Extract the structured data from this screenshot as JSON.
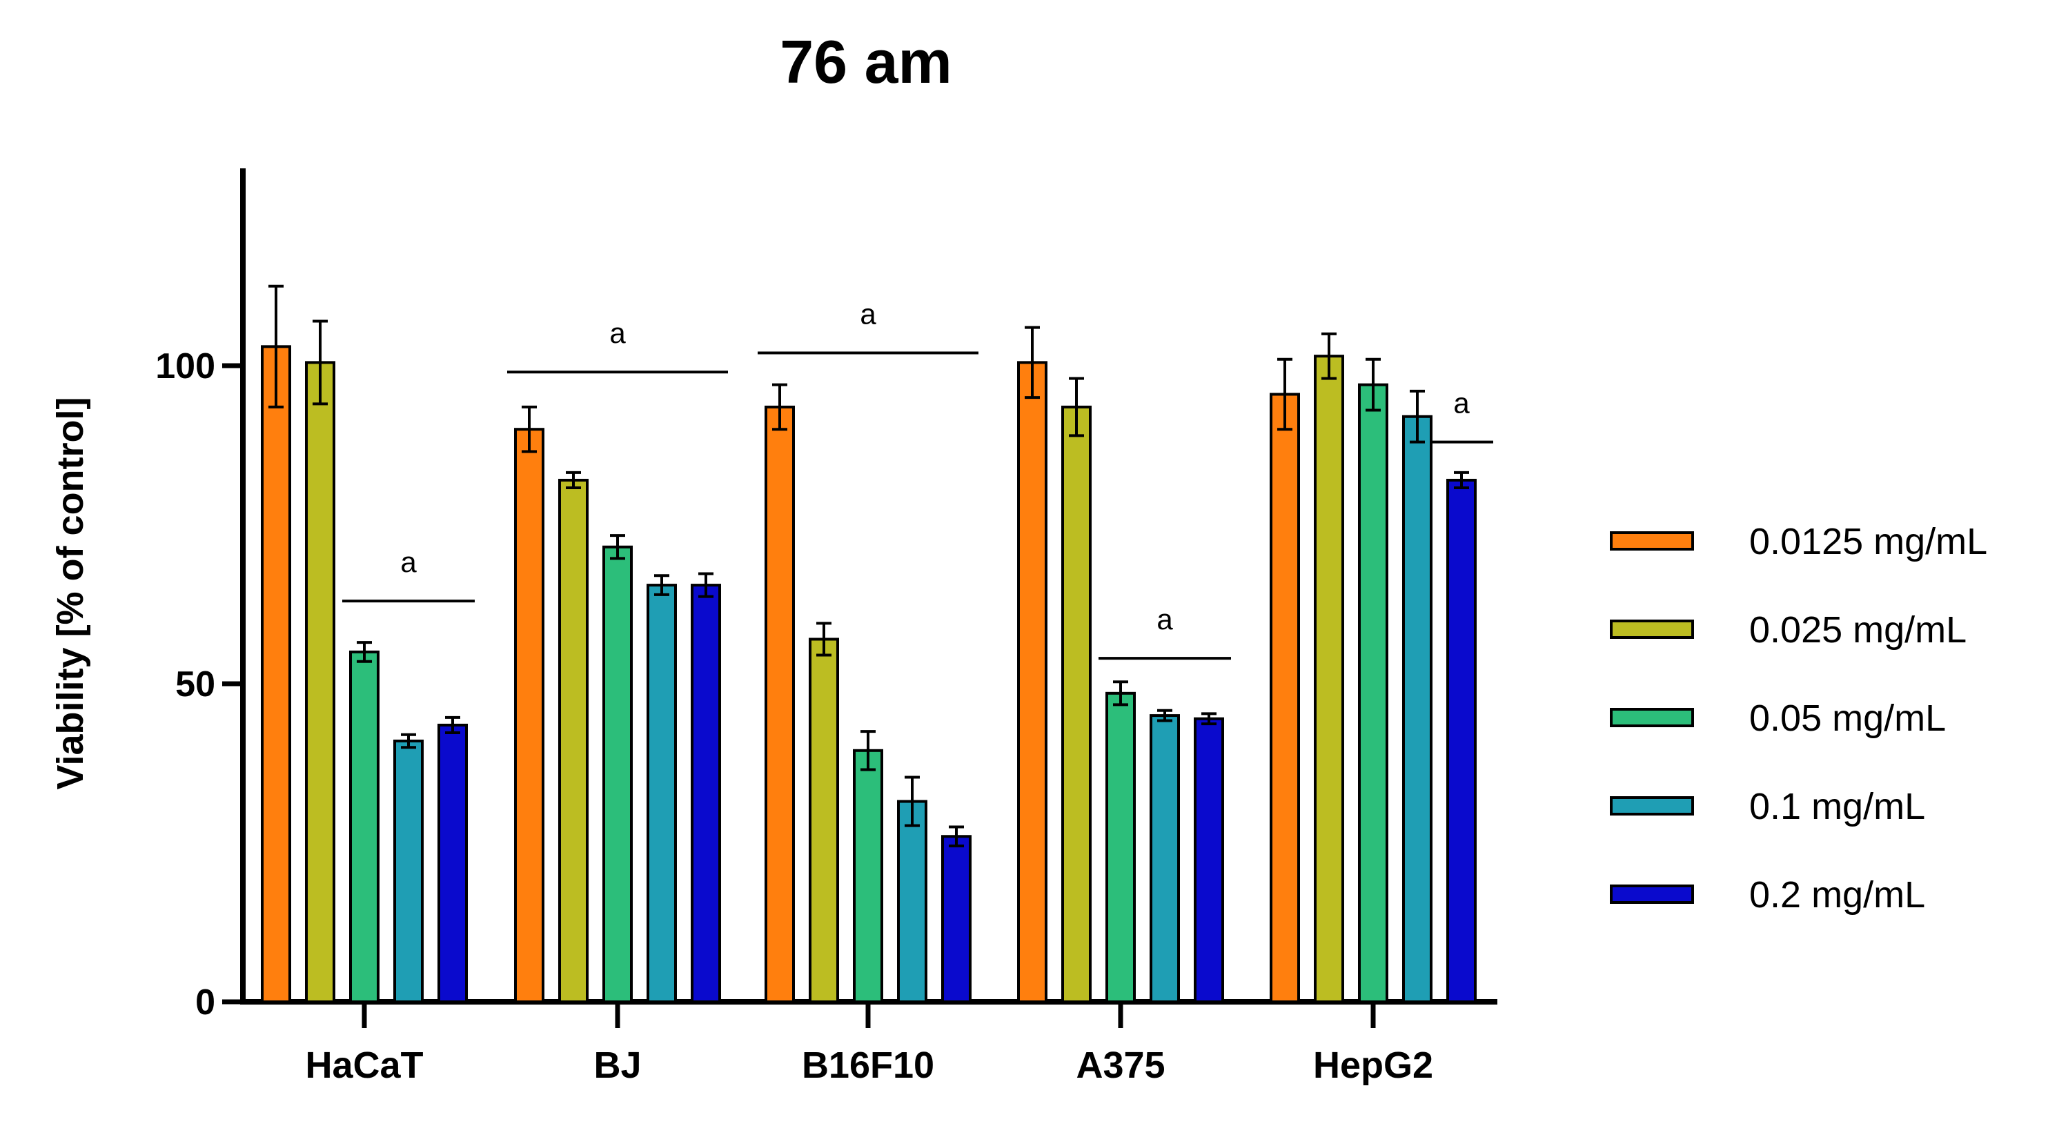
{
  "chart_data": {
    "type": "bar",
    "title": "76 am",
    "xlabel": "",
    "ylabel": "Viability [% of control]",
    "ylim": [
      0,
      130
    ],
    "yticks": [
      0,
      50,
      100
    ],
    "categories": [
      "HaCaT",
      "BJ",
      "B16F10",
      "A375",
      "HepG2"
    ],
    "series": [
      {
        "name": "0.0125 mg/mL",
        "color": "#FF7F0E",
        "values": [
          103,
          90,
          93.5,
          100.5,
          95.5
        ],
        "errors": [
          9.5,
          3.5,
          3.5,
          5.5,
          5.5
        ]
      },
      {
        "name": "0.025 mg/mL",
        "color": "#BCBD22",
        "values": [
          100.5,
          82,
          57,
          93.5,
          101.5
        ],
        "errors": [
          6.5,
          1.2,
          2.5,
          4.5,
          3.5
        ]
      },
      {
        "name": "0.05 mg/mL",
        "color": "#2CBE7A",
        "values": [
          55,
          71.5,
          39.5,
          48.5,
          97
        ],
        "errors": [
          1.5,
          1.8,
          3,
          1.8,
          4
        ]
      },
      {
        "name": "0.1 mg/mL",
        "color": "#1F9EB4",
        "values": [
          41,
          65.5,
          31.5,
          45,
          92
        ],
        "errors": [
          1,
          1.5,
          3.8,
          0.8,
          4
        ]
      },
      {
        "name": "0.2 mg/mL",
        "color": "#0A0ACD",
        "values": [
          43.5,
          65.5,
          26,
          44.5,
          82
        ],
        "errors": [
          1.2,
          1.8,
          1.5,
          0.8,
          1.2
        ]
      }
    ],
    "annotations": [
      {
        "text": "a",
        "category": "HaCaT",
        "from_series": 2,
        "to_series": 4,
        "y": 63
      },
      {
        "text": "a",
        "category": "BJ",
        "from_series": 0,
        "to_series": 4,
        "y": 99
      },
      {
        "text": "a",
        "category": "B16F10",
        "from_series": 0,
        "to_series": 4,
        "y": 102
      },
      {
        "text": "a",
        "category": "A375",
        "from_series": 2,
        "to_series": 4,
        "y": 54
      },
      {
        "text": "a",
        "category": "HepG2",
        "from_series": 4,
        "to_series": 4,
        "y": 88
      }
    ],
    "legend_position": "right",
    "grid": false
  }
}
